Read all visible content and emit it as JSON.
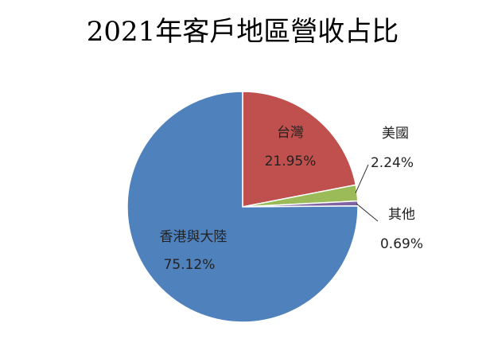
{
  "chart_data": {
    "type": "pie",
    "title": "2021年客戶地區營收占比",
    "categories": [
      "台灣",
      "美國",
      "其他",
      "香港與大陸"
    ],
    "values": [
      21.95,
      2.24,
      0.69,
      75.12
    ],
    "value_labels": [
      "21.95%",
      "2.24%",
      "0.69%",
      "75.12%"
    ],
    "colors": [
      "#c0504d",
      "#9bbb59",
      "#8064a2",
      "#4f81bd"
    ]
  }
}
